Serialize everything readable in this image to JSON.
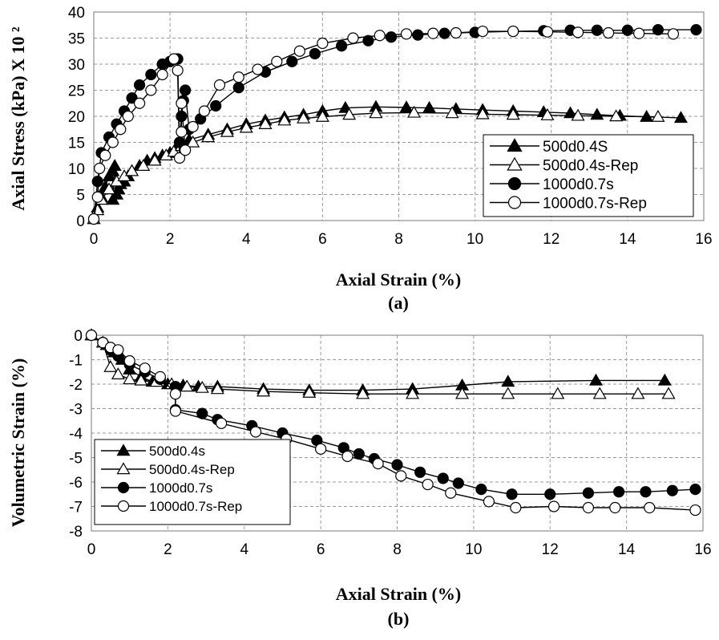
{
  "chart_data": [
    {
      "type": "line",
      "panel_label": "(a)",
      "xlabel": "Axial Strain (%)",
      "ylabel": "Axial Stress (kPa) X 10 ²",
      "xlim": [
        0,
        16
      ],
      "ylim": [
        0,
        40
      ],
      "xticks": [
        0,
        2,
        4,
        6,
        8,
        10,
        12,
        14,
        16
      ],
      "yticks": [
        0,
        5,
        10,
        15,
        20,
        25,
        30,
        35,
        40
      ],
      "grid": true,
      "legend_position": "bottom-right",
      "series": [
        {
          "name": "500d0.4S",
          "marker": "triangle",
          "filled": true,
          "x": [
            0.0,
            0.1,
            0.2,
            0.3,
            0.4,
            0.5,
            0.5,
            0.55,
            0.6,
            0.65,
            0.7,
            0.8,
            0.9,
            1.0,
            1.2,
            1.4,
            1.6,
            1.8,
            2.0,
            2.2,
            2.5,
            3.0,
            3.5,
            4.0,
            4.5,
            5.0,
            5.5,
            6.0,
            6.6,
            7.4,
            8.2,
            8.8,
            9.5,
            10.2,
            11.0,
            11.8,
            12.5,
            13.2,
            13.8,
            14.5,
            15.4
          ],
          "y": [
            0.3,
            2.5,
            4.5,
            6.5,
            8.5,
            9.5,
            4.0,
            10.5,
            5.0,
            6.0,
            7.0,
            7.5,
            8.5,
            9.5,
            10.5,
            11.5,
            12.0,
            12.5,
            13.0,
            14.5,
            15.5,
            16.5,
            17.5,
            18.5,
            19.2,
            19.8,
            20.3,
            21.0,
            21.6,
            21.8,
            21.7,
            21.6,
            21.4,
            21.2,
            21.0,
            20.8,
            20.6,
            20.3,
            20.1,
            19.9,
            19.7
          ]
        },
        {
          "name": "500d0.4s-Rep",
          "marker": "triangle",
          "filled": false,
          "x": [
            0.0,
            0.1,
            0.2,
            0.4,
            0.6,
            0.8,
            1.0,
            1.3,
            1.6,
            1.9,
            2.1,
            2.3,
            2.6,
            3.0,
            3.5,
            4.0,
            4.5,
            5.0,
            5.5,
            6.0,
            6.7,
            7.4,
            8.4,
            9.4,
            10.2,
            11.0,
            11.9,
            12.7,
            13.7,
            14.8
          ],
          "y": [
            0.3,
            2.0,
            4.0,
            6.0,
            7.5,
            8.5,
            9.5,
            10.5,
            11.5,
            12.5,
            13.2,
            14.3,
            15.0,
            16.0,
            17.0,
            17.8,
            18.5,
            19.2,
            19.6,
            19.9,
            20.3,
            20.6,
            20.7,
            20.6,
            20.4,
            20.3,
            20.2,
            20.1,
            20.0,
            19.9
          ]
        },
        {
          "name": "1000d0.7s",
          "marker": "circle",
          "filled": true,
          "x": [
            0.0,
            0.1,
            0.2,
            0.4,
            0.6,
            0.8,
            1.0,
            1.2,
            1.5,
            1.8,
            2.0,
            2.2,
            2.25,
            2.3,
            2.35,
            2.4,
            2.5,
            2.8,
            3.2,
            3.8,
            4.5,
            5.2,
            5.8,
            6.5,
            7.2,
            7.8,
            8.5,
            9.2,
            10.0,
            11.0,
            11.8,
            12.5,
            13.2,
            14.0,
            14.8,
            15.8
          ],
          "y": [
            0.3,
            7.5,
            13.0,
            16.0,
            18.5,
            21.0,
            23.5,
            26.0,
            28.0,
            30.0,
            30.5,
            31.0,
            15.0,
            20.0,
            23.0,
            25.0,
            17.5,
            19.5,
            22.0,
            25.5,
            28.5,
            30.5,
            32.0,
            33.5,
            34.5,
            35.2,
            35.6,
            35.9,
            36.1,
            36.3,
            36.4,
            36.5,
            36.5,
            36.5,
            36.6,
            36.6
          ]
        },
        {
          "name": "1000d0.7s-Rep",
          "marker": "circle",
          "filled": false,
          "x": [
            0.0,
            0.1,
            0.15,
            0.3,
            0.5,
            0.7,
            0.9,
            1.2,
            1.5,
            1.8,
            2.1,
            2.2,
            2.25,
            2.3,
            2.3,
            2.4,
            2.6,
            2.9,
            3.3,
            3.8,
            4.3,
            4.8,
            5.4,
            6.0,
            6.8,
            7.5,
            8.2,
            8.9,
            9.5,
            10.2,
            11.0,
            11.9,
            12.7,
            13.5,
            14.3,
            15.2
          ],
          "y": [
            0.3,
            4.5,
            10.0,
            12.5,
            15.0,
            17.5,
            20.0,
            22.5,
            25.0,
            28.0,
            31.0,
            28.8,
            12.0,
            17.0,
            22.5,
            13.5,
            18.0,
            21.0,
            26.0,
            27.5,
            29.0,
            30.5,
            32.5,
            34.0,
            35.0,
            35.5,
            35.8,
            35.9,
            36.0,
            36.3,
            36.3,
            36.2,
            36.1,
            36.0,
            35.9,
            35.8
          ]
        }
      ]
    },
    {
      "type": "line",
      "panel_label": "(b)",
      "xlabel": "Axial Strain (%)",
      "ylabel": "Volumetric Strain (%)",
      "xlim": [
        0,
        16
      ],
      "ylim": [
        -8,
        0
      ],
      "xticks": [
        0,
        2,
        4,
        6,
        8,
        10,
        12,
        14,
        16
      ],
      "yticks": [
        0,
        -1,
        -2,
        -3,
        -4,
        -5,
        -6,
        -7,
        -8
      ],
      "grid": true,
      "legend_position": "bottom-left",
      "series": [
        {
          "name": "500d0.4s",
          "marker": "triangle",
          "filled": true,
          "x": [
            0.0,
            0.4,
            0.6,
            0.8,
            1.0,
            1.3,
            1.6,
            2.0,
            2.4,
            2.8,
            3.3,
            4.5,
            5.7,
            7.1,
            8.4,
            9.7,
            10.9,
            13.2,
            15.0
          ],
          "y": [
            0.0,
            -0.4,
            -0.7,
            -1.0,
            -1.4,
            -1.7,
            -1.9,
            -2.0,
            -2.05,
            -2.1,
            -2.1,
            -2.2,
            -2.25,
            -2.25,
            -2.2,
            -2.05,
            -1.9,
            -1.85,
            -1.85
          ]
        },
        {
          "name": "500d0.4s-Rep",
          "marker": "triangle",
          "filled": false,
          "x": [
            0.0,
            0.3,
            0.5,
            0.7,
            1.0,
            1.3,
            1.7,
            2.1,
            2.5,
            2.9,
            3.3,
            4.5,
            5.7,
            7.1,
            8.4,
            9.7,
            10.9,
            12.2,
            13.3,
            14.3,
            15.1
          ],
          "y": [
            0.0,
            -0.3,
            -1.3,
            -1.6,
            -1.8,
            -1.85,
            -1.9,
            -2.0,
            -2.1,
            -2.15,
            -2.2,
            -2.3,
            -2.35,
            -2.4,
            -2.4,
            -2.4,
            -2.4,
            -2.4,
            -2.4,
            -2.4,
            -2.4
          ]
        },
        {
          "name": "1000d0.7s",
          "marker": "circle",
          "filled": true,
          "x": [
            0.0,
            0.3,
            0.5,
            0.7,
            1.0,
            1.4,
            1.8,
            2.2,
            2.2,
            2.9,
            3.3,
            4.2,
            5.0,
            5.9,
            6.6,
            7.0,
            7.4,
            8.0,
            8.6,
            9.2,
            9.6,
            10.2,
            11.0,
            12.0,
            13.0,
            13.8,
            14.5,
            15.2,
            15.8
          ],
          "y": [
            0.0,
            -0.3,
            -0.6,
            -0.85,
            -1.2,
            -1.5,
            -1.8,
            -2.1,
            -3.05,
            -3.2,
            -3.45,
            -3.7,
            -4.0,
            -4.3,
            -4.6,
            -4.85,
            -5.05,
            -5.3,
            -5.6,
            -5.85,
            -6.05,
            -6.3,
            -6.5,
            -6.5,
            -6.45,
            -6.4,
            -6.4,
            -6.35,
            -6.3
          ]
        },
        {
          "name": "1000d0.7s-Rep",
          "marker": "circle",
          "filled": false,
          "x": [
            0.0,
            0.3,
            0.5,
            0.7,
            1.0,
            1.4,
            1.8,
            2.2,
            2.2,
            3.4,
            4.3,
            5.1,
            6.0,
            6.7,
            7.5,
            8.1,
            8.8,
            9.4,
            10.4,
            11.1,
            12.1,
            13.0,
            13.7,
            14.6,
            15.8
          ],
          "y": [
            0.0,
            -0.3,
            -0.5,
            -0.6,
            -1.05,
            -1.35,
            -1.7,
            -2.4,
            -3.1,
            -3.6,
            -3.95,
            -4.25,
            -4.65,
            -4.95,
            -5.25,
            -5.75,
            -6.1,
            -6.45,
            -6.8,
            -7.05,
            -7.0,
            -7.05,
            -7.05,
            -7.05,
            -7.15
          ]
        }
      ]
    }
  ]
}
